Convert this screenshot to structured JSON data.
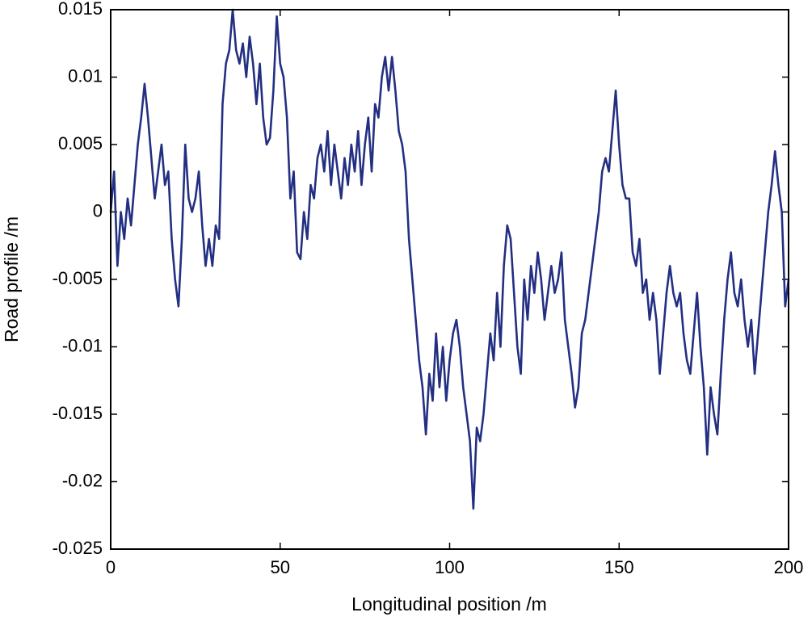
{
  "chart_data": {
    "type": "line",
    "xlabel": "Longitudinal position /m",
    "ylabel": "Road profile /m",
    "xlim": [
      0,
      200
    ],
    "xticks": [
      0,
      50,
      100,
      150,
      200
    ],
    "ylim": [
      -0.025,
      0.015
    ],
    "yticks": [
      -0.025,
      -0.02,
      -0.015,
      -0.01,
      -0.005,
      0,
      0.005,
      0.01,
      0.015
    ],
    "grid": false,
    "x": [
      0,
      1,
      2,
      3,
      4,
      5,
      6,
      7,
      8,
      9,
      10,
      11,
      12,
      13,
      14,
      15,
      16,
      17,
      18,
      19,
      20,
      21,
      22,
      23,
      24,
      25,
      26,
      27,
      28,
      29,
      30,
      31,
      32,
      33,
      34,
      35,
      36,
      37,
      38,
      39,
      40,
      41,
      42,
      43,
      44,
      45,
      46,
      47,
      48,
      49,
      50,
      51,
      52,
      53,
      54,
      55,
      56,
      57,
      58,
      59,
      60,
      61,
      62,
      63,
      64,
      65,
      66,
      67,
      68,
      69,
      70,
      71,
      72,
      73,
      74,
      75,
      76,
      77,
      78,
      79,
      80,
      81,
      82,
      83,
      84,
      85,
      86,
      87,
      88,
      89,
      90,
      91,
      92,
      93,
      94,
      95,
      96,
      97,
      98,
      99,
      100,
      101,
      102,
      103,
      104,
      105,
      106,
      107,
      108,
      109,
      110,
      111,
      112,
      113,
      114,
      115,
      116,
      117,
      118,
      119,
      120,
      121,
      122,
      123,
      124,
      125,
      126,
      127,
      128,
      129,
      130,
      131,
      132,
      133,
      134,
      135,
      136,
      137,
      138,
      139,
      140,
      141,
      142,
      143,
      144,
      145,
      146,
      147,
      148,
      149,
      150,
      151,
      152,
      153,
      154,
      155,
      156,
      157,
      158,
      159,
      160,
      161,
      162,
      163,
      164,
      165,
      166,
      167,
      168,
      169,
      170,
      171,
      172,
      173,
      174,
      175,
      176,
      177,
      178,
      179,
      180,
      181,
      182,
      183,
      184,
      185,
      186,
      187,
      188,
      189,
      190,
      191,
      192,
      193,
      194,
      195,
      196,
      197,
      198,
      199,
      200
    ],
    "series": [
      {
        "color": "#232f82",
        "values": [
          0,
          0.003,
          -0.004,
          0,
          -0.002,
          0.001,
          -0.001,
          0.002,
          0.005,
          0.007,
          0.0095,
          0.007,
          0.004,
          0.001,
          0.003,
          0.005,
          0.002,
          0.003,
          -0.002,
          -0.005,
          -0.007,
          -0.002,
          0.005,
          0.001,
          0,
          0.001,
          0.003,
          -0.001,
          -0.004,
          -0.002,
          -0.004,
          -0.001,
          -0.002,
          0.008,
          0.011,
          0.012,
          0.015,
          0.012,
          0.011,
          0.0125,
          0.01,
          0.013,
          0.011,
          0.008,
          0.011,
          0.007,
          0.005,
          0.0055,
          0.009,
          0.0145,
          0.011,
          0.01,
          0.007,
          0.001,
          0.003,
          -0.003,
          -0.0035,
          0,
          -0.002,
          0.002,
          0.001,
          0.004,
          0.005,
          0.003,
          0.006,
          0.002,
          0.005,
          0.003,
          0.001,
          0.004,
          0.002,
          0.005,
          0.003,
          0.006,
          0.002,
          0.005,
          0.007,
          0.003,
          0.008,
          0.007,
          0.01,
          0.0115,
          0.009,
          0.0115,
          0.009,
          0.006,
          0.005,
          0.003,
          -0.002,
          -0.005,
          -0.008,
          -0.011,
          -0.013,
          -0.0165,
          -0.012,
          -0.014,
          -0.009,
          -0.013,
          -0.01,
          -0.014,
          -0.011,
          -0.009,
          -0.008,
          -0.01,
          -0.013,
          -0.015,
          -0.017,
          -0.022,
          -0.016,
          -0.017,
          -0.015,
          -0.012,
          -0.009,
          -0.011,
          -0.006,
          -0.01,
          -0.004,
          -0.001,
          -0.002,
          -0.006,
          -0.01,
          -0.012,
          -0.005,
          -0.008,
          -0.004,
          -0.006,
          -0.003,
          -0.005,
          -0.008,
          -0.006,
          -0.004,
          -0.006,
          -0.005,
          -0.003,
          -0.008,
          -0.01,
          -0.012,
          -0.0145,
          -0.013,
          -0.009,
          -0.008,
          -0.006,
          -0.004,
          -0.002,
          0,
          0.003,
          0.004,
          0.003,
          0.006,
          0.009,
          0.005,
          0.002,
          0.001,
          0.001,
          -0.003,
          -0.004,
          -0.002,
          -0.006,
          -0.005,
          -0.008,
          -0.006,
          -0.008,
          -0.012,
          -0.009,
          -0.006,
          -0.004,
          -0.006,
          -0.007,
          -0.006,
          -0.009,
          -0.011,
          -0.012,
          -0.009,
          -0.006,
          -0.01,
          -0.013,
          -0.018,
          -0.013,
          -0.015,
          -0.0165,
          -0.012,
          -0.008,
          -0.005,
          -0.003,
          -0.006,
          -0.007,
          -0.005,
          -0.008,
          -0.01,
          -0.008,
          -0.012,
          -0.009,
          -0.006,
          -0.003,
          0,
          0.002,
          0.0045,
          0.002,
          0,
          -0.007,
          -0.005
        ]
      }
    ]
  }
}
